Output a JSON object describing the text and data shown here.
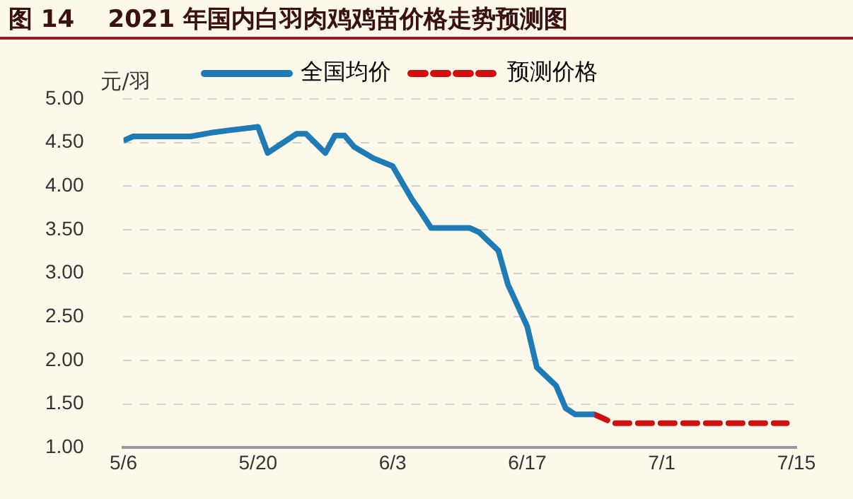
{
  "chart_data": {
    "type": "line",
    "title": "图 14    2021 年国内白羽肉鸡鸡苗价格走势预测图",
    "ylabel": "元/羽",
    "xlim": [
      "--05-06",
      "--07-15"
    ],
    "xticks": [
      {
        "value": "--05-06",
        "label": "5/6"
      },
      {
        "value": "--05-20",
        "label": "5/20"
      },
      {
        "value": "--06-03",
        "label": "6/3"
      },
      {
        "value": "--06-17",
        "label": "6/17"
      },
      {
        "value": "--07-01",
        "label": "7/1"
      },
      {
        "value": "--07-15",
        "label": "7/15"
      }
    ],
    "ylim": [
      1,
      5
    ],
    "yticks": [
      {
        "value": 1,
        "label": "1.00"
      },
      {
        "value": 1.5,
        "label": "1.50"
      },
      {
        "value": 2,
        "label": "2.00"
      },
      {
        "value": 2.5,
        "label": "2.50"
      },
      {
        "value": 3,
        "label": "3.00"
      },
      {
        "value": 3.5,
        "label": "3.50"
      },
      {
        "value": 4,
        "label": "4.00"
      },
      {
        "value": 4.5,
        "label": "4.50"
      },
      {
        "value": 5,
        "label": "5.00"
      }
    ],
    "grid": "y",
    "legend": "top",
    "marker": "none",
    "series": [
      {
        "name": "全国均价",
        "color": "#1f7bb6",
        "line_style": "solid",
        "x": [
          "--05-06",
          "--05-07",
          "--05-13",
          "--05-15",
          "--05-17",
          "--05-20",
          "--05-21",
          "--05-24",
          "--05-25",
          "--05-27",
          "--05-28",
          "--05-29",
          "--05-30",
          "--06-01",
          "--06-03",
          "--06-05",
          "--06-06",
          "--06-07",
          "--06-11",
          "--06-12",
          "--06-14",
          "--06-15",
          "--06-17",
          "--06-18",
          "--06-20",
          "--06-21",
          "--06-22",
          "--06-24"
        ],
        "values": [
          4.52,
          4.57,
          4.57,
          4.61,
          4.64,
          4.68,
          4.38,
          4.6,
          4.6,
          4.38,
          4.58,
          4.58,
          4.45,
          4.32,
          4.23,
          3.85,
          3.69,
          3.52,
          3.52,
          3.47,
          3.26,
          2.87,
          2.39,
          1.92,
          1.71,
          1.45,
          1.38,
          1.38
        ]
      },
      {
        "name": "预测价格",
        "color": "#d01010",
        "line_style": "dashed",
        "x": [
          "--06-24",
          "--06-25",
          "--06-26",
          "--07-14"
        ],
        "values": [
          1.38,
          1.33,
          1.28,
          1.28
        ]
      }
    ]
  }
}
